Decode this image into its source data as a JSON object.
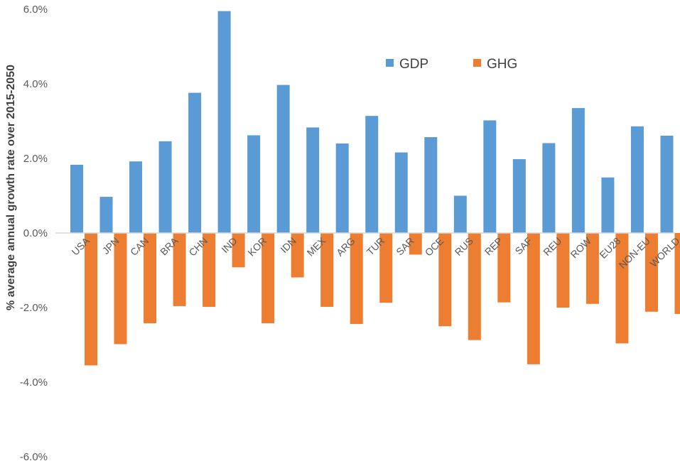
{
  "chart_data": {
    "type": "bar",
    "title": "",
    "xlabel": "",
    "ylabel": "% average annual growth rate over 2015-2050",
    "ylim": [
      -6.0,
      6.0
    ],
    "y_ticks": [
      "6.0%",
      "4.0%",
      "2.0%",
      "0.0%",
      "-2.0%",
      "-4.0%",
      "-6.0%"
    ],
    "y_tick_values": [
      6.0,
      4.0,
      2.0,
      0.0,
      -2.0,
      -4.0,
      -6.0
    ],
    "categories": [
      "USA",
      "JPN",
      "CAN",
      "BRA",
      "CHN",
      "IND",
      "KOR",
      "IDN",
      "MEX",
      "ARG",
      "TUR",
      "SAR",
      "OCE",
      "RUS",
      "REP",
      "SAF",
      "REU",
      "ROW",
      "EU28",
      "NON-EU",
      "WORLD"
    ],
    "series": [
      {
        "name": "GDP",
        "color": "#5b9bd5",
        "values": [
          1.83,
          0.97,
          1.92,
          2.46,
          3.76,
          5.95,
          2.62,
          3.97,
          2.83,
          2.4,
          3.14,
          2.16,
          2.57,
          1.0,
          3.02,
          1.98,
          2.41,
          3.35,
          1.49,
          2.86,
          2.61
        ]
      },
      {
        "name": "GHG",
        "color": "#ed7d31",
        "values": [
          -3.55,
          -2.98,
          -2.42,
          -1.96,
          -1.98,
          -0.92,
          -2.42,
          -1.19,
          -1.98,
          -2.44,
          -1.87,
          -0.58,
          -2.5,
          -2.87,
          -1.86,
          -3.52,
          -2.0,
          -1.9,
          -2.96,
          -2.11,
          -2.17
        ]
      }
    ],
    "grid": false,
    "legend": "top-right"
  }
}
